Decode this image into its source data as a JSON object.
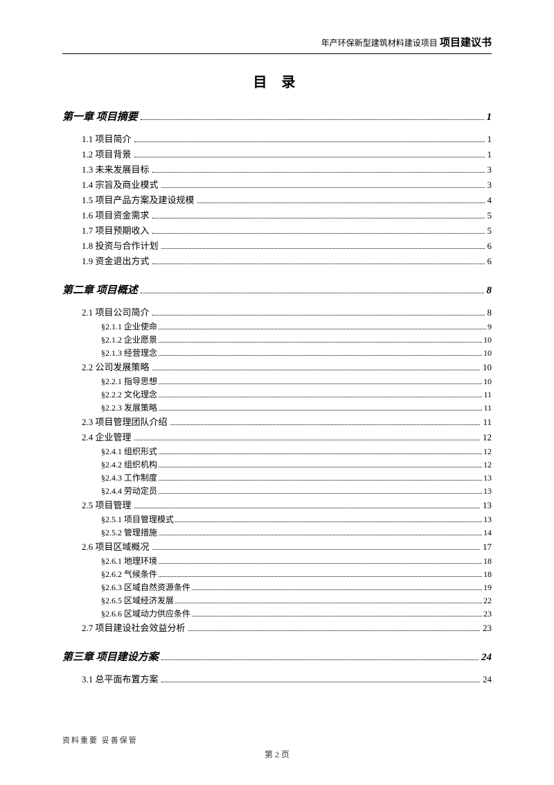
{
  "header": {
    "small": "年产环保新型建筑材料建设项目",
    "bold": "项目建议书"
  },
  "title": "目 录",
  "toc": [
    {
      "type": "chapter",
      "label": "第一章 项目摘要",
      "page": "1"
    },
    {
      "type": "section",
      "label": "1.1 项目简介",
      "page": "1"
    },
    {
      "type": "section",
      "label": "1.2 项目背景",
      "page": "1"
    },
    {
      "type": "section",
      "label": "1.3 未来发展目标",
      "page": "3"
    },
    {
      "type": "section",
      "label": "1.4 宗旨及商业模式",
      "page": "3"
    },
    {
      "type": "section",
      "label": "1.5 项目产品方案及建设规模",
      "page": "4"
    },
    {
      "type": "section",
      "label": "1.6 项目资金需求",
      "page": "5"
    },
    {
      "type": "section",
      "label": "1.7 项目预期收入",
      "page": "5"
    },
    {
      "type": "section",
      "label": "1.8 投资与合作计划",
      "page": "6"
    },
    {
      "type": "section",
      "label": "1.9 资金退出方式",
      "page": "6"
    },
    {
      "type": "chapter",
      "label": "第二章 项目概述",
      "page": "8"
    },
    {
      "type": "section",
      "label": "2.1 项目公司简介",
      "page": "8"
    },
    {
      "type": "subsection",
      "label": "§2.1.1 企业使命",
      "page": "9"
    },
    {
      "type": "subsection",
      "label": "§2.1.2 企业愿景",
      "page": "10"
    },
    {
      "type": "subsection",
      "label": "§2.1.3 经营理念",
      "page": "10"
    },
    {
      "type": "section",
      "label": "2.2 公司发展策略",
      "page": "10"
    },
    {
      "type": "subsection",
      "label": "§2.2.1 指导思想",
      "page": "10"
    },
    {
      "type": "subsection",
      "label": "§2.2.2 文化理念",
      "page": "11"
    },
    {
      "type": "subsection",
      "label": "§2.2.3 发展策略",
      "page": "11"
    },
    {
      "type": "section",
      "label": "2.3 项目管理团队介绍",
      "page": "11"
    },
    {
      "type": "section",
      "label": "2.4 企业管理",
      "page": "12"
    },
    {
      "type": "subsection",
      "label": "§2.4.1 组织形式",
      "page": "12"
    },
    {
      "type": "subsection",
      "label": "§2.4.2 组织机构",
      "page": "12"
    },
    {
      "type": "subsection",
      "label": "§2.4.3 工作制度",
      "page": "13"
    },
    {
      "type": "subsection",
      "label": "§2.4.4 劳动定员",
      "page": "13"
    },
    {
      "type": "section",
      "label": "2.5 项目管理",
      "page": "13"
    },
    {
      "type": "subsection",
      "label": "§2.5.1 项目管理模式",
      "page": "13"
    },
    {
      "type": "subsection",
      "label": "§2.5.2 管理措施",
      "page": "14"
    },
    {
      "type": "section",
      "label": "2.6 项目区域概况",
      "page": "17"
    },
    {
      "type": "subsection",
      "label": "§2.6.1 地理环境",
      "page": "18"
    },
    {
      "type": "subsection",
      "label": "§2.6.2 气候条件",
      "page": "18"
    },
    {
      "type": "subsection",
      "label": "§2.6.3 区域自然资源条件",
      "page": "19"
    },
    {
      "type": "subsection",
      "label": "§2.6.5 区域经济发展",
      "page": "22"
    },
    {
      "type": "subsection",
      "label": "§2.6.6 区域动力供应条件",
      "page": "23"
    },
    {
      "type": "section",
      "label": "2.7 项目建设社会效益分析",
      "page": "23"
    },
    {
      "type": "chapter",
      "label": "第三章 项目建设方案",
      "page": "24"
    },
    {
      "type": "section",
      "label": "3.1 总平面布置方案",
      "page": "24"
    }
  ],
  "footer": {
    "note": "资料重要 妥善保管",
    "page": "第 2 页"
  }
}
